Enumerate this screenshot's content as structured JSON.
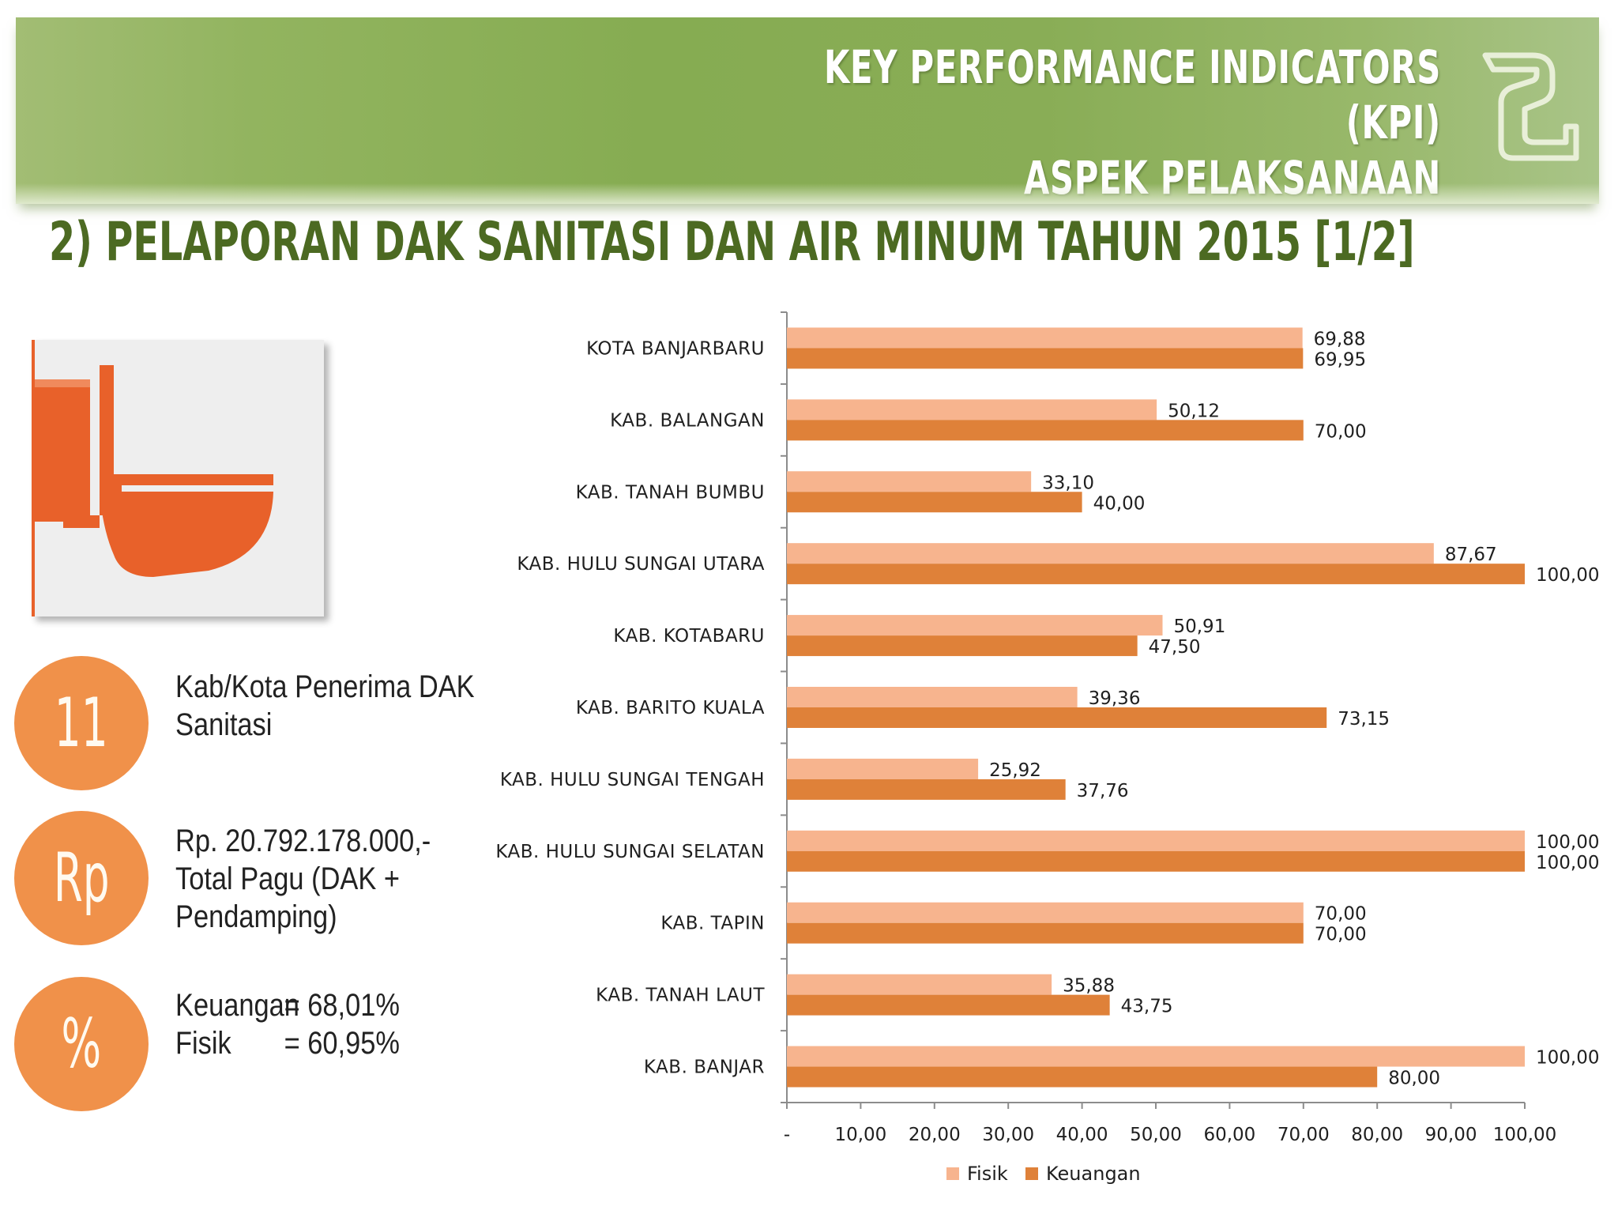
{
  "header": {
    "title_line1": "KEY PERFORMANCE INDICATORS (KPI)",
    "title_line2": "ASPEK PELAKSANAAN"
  },
  "section_title": "2) PELAPORAN DAK SANITASI DAN AIR MINUM TAHUN 2015 [1/2]",
  "icons": {
    "card": "toilet-icon",
    "logo": "ministry-logo"
  },
  "stats": [
    {
      "icon_text": "11",
      "lines": [
        "Kab/Kota Penerima DAK",
        "Sanitasi"
      ]
    },
    {
      "icon_text": "Rp",
      "lines": [
        "Rp. 20.792.178.000,-",
        "Total Pagu (DAK +",
        "Pendamping)"
      ]
    },
    {
      "icon_text": "%",
      "rows": [
        {
          "label": "Keuangan",
          "value": "= 68,01%"
        },
        {
          "label": "Fisik",
          "value": "= 60,95%"
        }
      ]
    }
  ],
  "colors": {
    "banner_green": "#8fb25c",
    "title_green": "#4c6a22",
    "fisik": "#f7b48e",
    "keuangan": "#df8139",
    "circle": "#f0914a",
    "toilet": "#e8612a"
  },
  "chart_data": {
    "type": "bar",
    "orientation": "horizontal",
    "categories": [
      "KOTA BANJARBARU",
      "KAB. BALANGAN",
      "KAB. TANAH BUMBU",
      "KAB. HULU SUNGAI UTARA",
      "KAB. KOTABARU",
      "KAB. BARITO KUALA",
      "KAB. HULU SUNGAI TENGAH",
      "KAB. HULU SUNGAI SELATAN",
      "KAB. TAPIN",
      "KAB. TANAH LAUT",
      "KAB. BANJAR"
    ],
    "series": [
      {
        "name": "Fisik",
        "color": "#f7b48e",
        "values": [
          69.88,
          50.12,
          33.1,
          87.67,
          50.91,
          39.36,
          25.92,
          100.0,
          70.0,
          35.88,
          100.0
        ],
        "labels": [
          "69,88",
          "50,12",
          "33,10",
          "87,67",
          "50,91",
          "39,36",
          "25,92",
          "100,00",
          "70,00",
          "35,88",
          "100,00"
        ]
      },
      {
        "name": "Keuangan",
        "color": "#df8139",
        "values": [
          69.95,
          70.0,
          40.0,
          100.0,
          47.5,
          73.15,
          37.76,
          100.0,
          70.0,
          43.75,
          80.0
        ],
        "labels": [
          "69,95",
          "70,00",
          "40,00",
          "100,00",
          "47,50",
          "73,15",
          "37,76",
          "100,00",
          "70,00",
          "43,75",
          "80,00"
        ]
      }
    ],
    "xlim": [
      0,
      100
    ],
    "x_ticks": [
      0,
      10,
      20,
      30,
      40,
      50,
      60,
      70,
      80,
      90,
      100
    ],
    "x_tick_labels": [
      "-",
      "10,00",
      "20,00",
      "30,00",
      "40,00",
      "50,00",
      "60,00",
      "70,00",
      "80,00",
      "90,00",
      "100,00"
    ],
    "title": "",
    "xlabel": "",
    "ylabel": "",
    "grid": false,
    "legend": "bottom"
  }
}
